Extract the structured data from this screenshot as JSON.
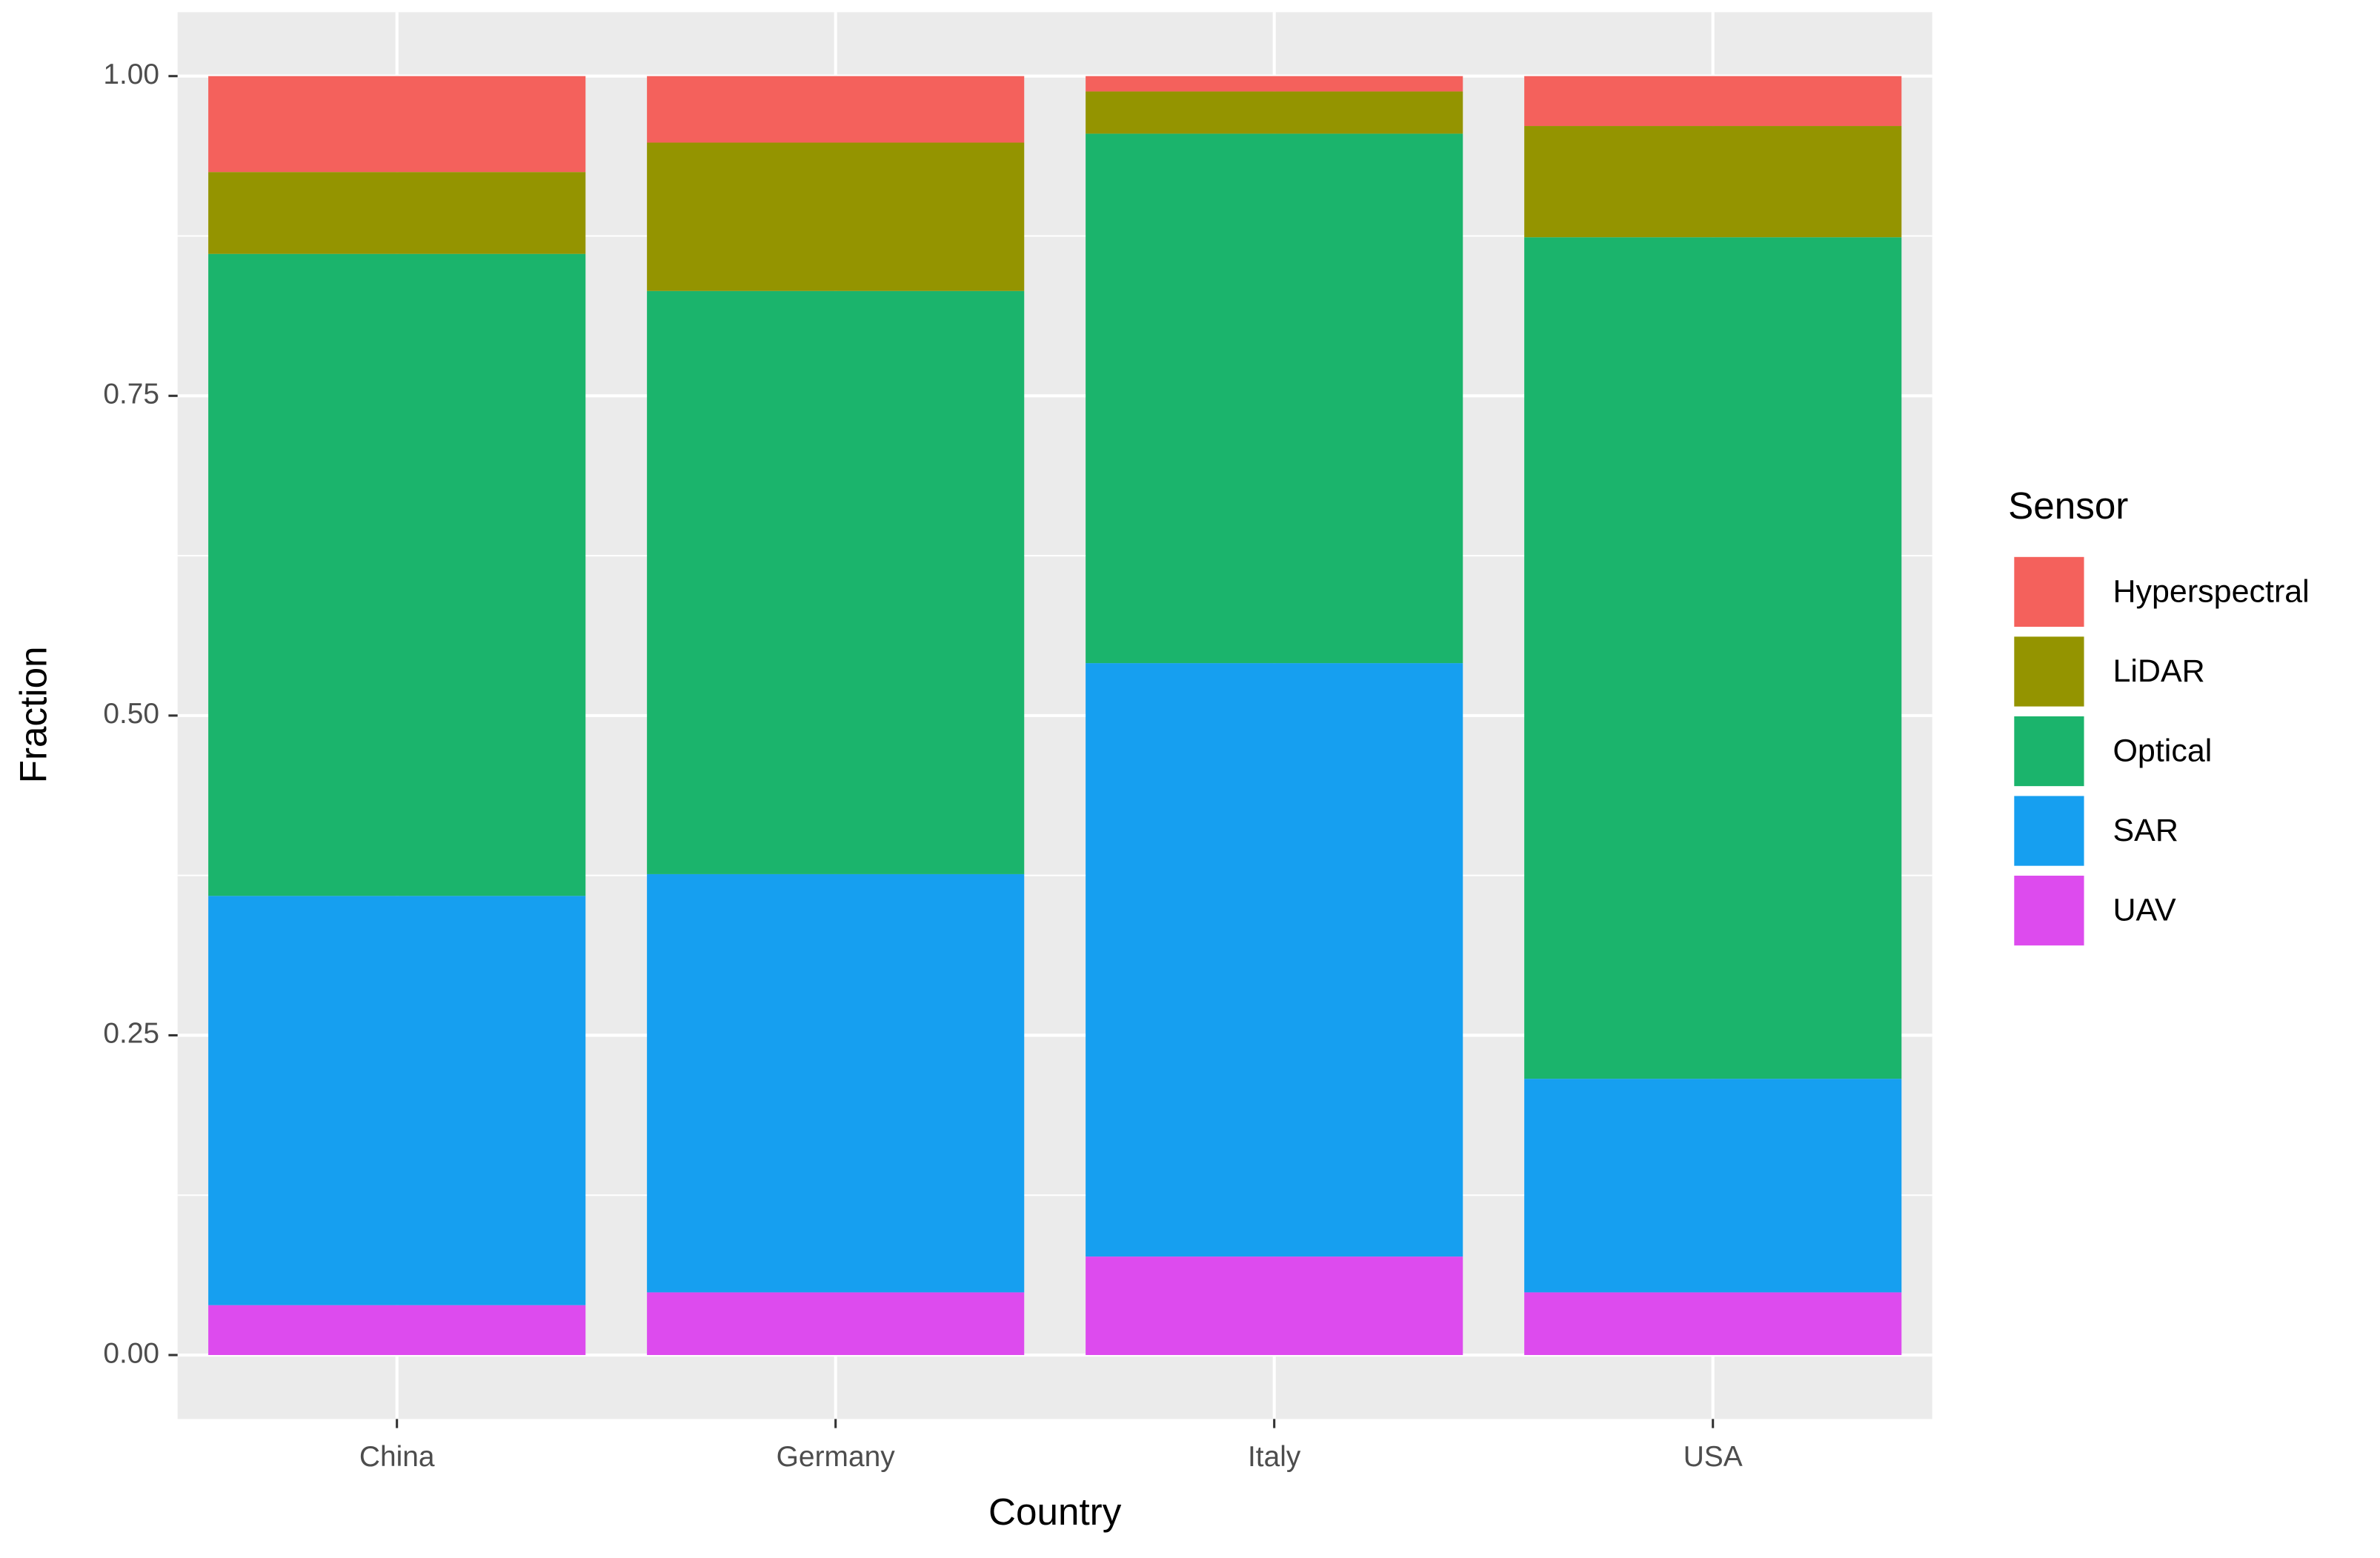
{
  "chart_data": {
    "type": "stacked_bar",
    "x_label": "Country",
    "y_label": "Fraction",
    "legend_title": "Sensor",
    "categories": [
      "China",
      "Germany",
      "Italy",
      "USA"
    ],
    "series": [
      {
        "name": "Hyperspectral",
        "color": "#F4615C",
        "values": [
          0.075,
          0.052,
          0.012,
          0.039
        ]
      },
      {
        "name": "LiDAR",
        "color": "#949400",
        "values": [
          0.064,
          0.116,
          0.033,
          0.087
        ]
      },
      {
        "name": "Optical",
        "color": "#1BB46C",
        "values": [
          0.502,
          0.456,
          0.414,
          0.658
        ]
      },
      {
        "name": "SAR",
        "color": "#169FF0",
        "values": [
          0.32,
          0.327,
          0.464,
          0.167
        ]
      },
      {
        "name": "UAV",
        "color": "#DD4BEE",
        "values": [
          0.039,
          0.049,
          0.077,
          0.049
        ]
      }
    ],
    "ylim": [
      -0.05,
      1.05
    ],
    "yticks": [
      {
        "value": 0,
        "label": "0.00"
      },
      {
        "value": 0.25,
        "label": "0.25"
      },
      {
        "value": 0.5,
        "label": "0.50"
      },
      {
        "value": 0.75,
        "label": "0.75"
      },
      {
        "value": 1,
        "label": "1.00"
      }
    ],
    "grid": true,
    "legend_position": "right"
  }
}
